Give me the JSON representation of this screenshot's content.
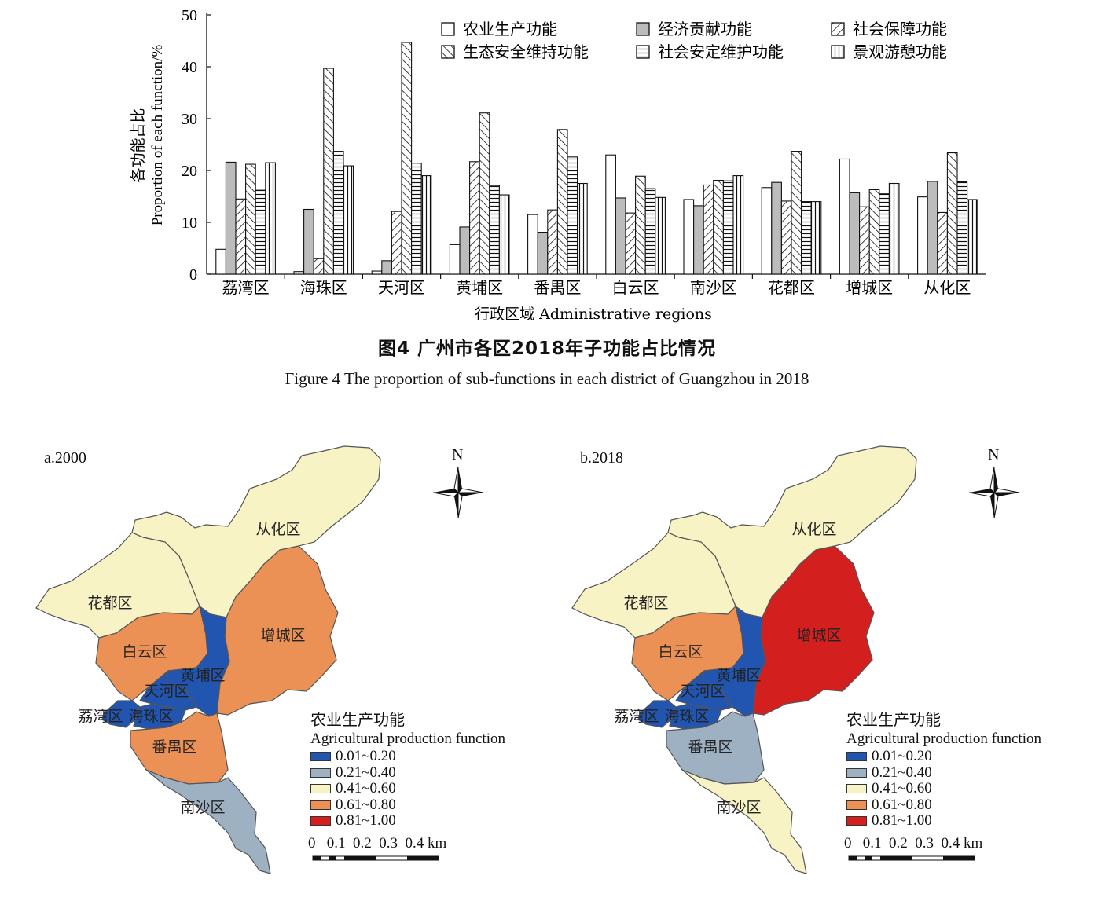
{
  "chart_data": [
    {
      "type": "bar",
      "title": "图4 广州市各区2018年子功能占比情况",
      "subtitle": "Figure 4 The proportion of sub-functions in each district of Guangzhou in 2018",
      "xlabel": "行政区域 Administrative regions",
      "ylabel_cn": "各功能占比",
      "ylabel_en": "Proportion of each function/%",
      "ylim": [
        0,
        50
      ],
      "yticks": [
        "0",
        "10",
        "20",
        "30",
        "40",
        "50"
      ],
      "categories": [
        "荔湾区",
        "海珠区",
        "天河区",
        "黄埔区",
        "番禺区",
        "白云区",
        "南沙区",
        "花都区",
        "增城区",
        "从化区"
      ],
      "legend_position": "top-right",
      "series": [
        {
          "name": "农业生产功能",
          "pattern": "blank",
          "values": [
            4.8,
            0.5,
            0.6,
            5.7,
            11.5,
            23.0,
            14.4,
            16.7,
            22.2,
            14.9
          ]
        },
        {
          "name": "经济贡献功能",
          "pattern": "gray",
          "values": [
            21.6,
            12.5,
            2.6,
            9.1,
            8.1,
            14.7,
            13.2,
            17.7,
            15.7,
            17.9
          ]
        },
        {
          "name": "社会保障功能",
          "pattern": "diag-right",
          "values": [
            14.5,
            3.0,
            12.1,
            21.7,
            12.4,
            11.8,
            17.2,
            14.1,
            13.0,
            11.9
          ]
        },
        {
          "name": "生态安全维持功能",
          "pattern": "diag-left",
          "values": [
            21.2,
            39.7,
            44.7,
            31.1,
            27.9,
            18.9,
            18.1,
            23.7,
            16.3,
            23.4
          ]
        },
        {
          "name": "社会安定维护功能",
          "pattern": "horizontal",
          "values": [
            16.4,
            23.7,
            21.4,
            17.1,
            22.6,
            16.5,
            18.0,
            14.0,
            15.5,
            17.8
          ]
        },
        {
          "name": "景观游憩功能",
          "pattern": "vertical",
          "values": [
            21.5,
            20.9,
            19.0,
            15.3,
            17.5,
            14.8,
            19.0,
            14.0,
            17.5,
            14.4
          ]
        }
      ]
    }
  ],
  "maps": {
    "panel_a": {
      "label": "a.2000",
      "north": "N"
    },
    "panel_b": {
      "label": "b.2018",
      "north": "N"
    },
    "region_names": [
      "从化区",
      "花都区",
      "增城区",
      "白云区",
      "黄埔区",
      "天河区",
      "荔湾区",
      "海珠区",
      "番禺区",
      "南沙区"
    ],
    "class_colors": {
      "0.01~0.20": "#2255b0",
      "0.21~0.40": "#9eb1c2",
      "0.41~0.60": "#f7f3c4",
      "0.61~0.80": "#eb9156",
      "0.81~1.00": "#d41f1f"
    },
    "values_2000": {
      "从化区": "0.41~0.60",
      "花都区": "0.41~0.60",
      "增城区": "0.61~0.80",
      "白云区": "0.61~0.80",
      "黄埔区": "0.01~0.20",
      "天河区": "0.01~0.20",
      "荔湾区": "0.01~0.20",
      "海珠区": "0.01~0.20",
      "番禺区": "0.61~0.80",
      "南沙区": "0.21~0.40"
    },
    "values_2018": {
      "从化区": "0.41~0.60",
      "花都区": "0.41~0.60",
      "增城区": "0.81~1.00",
      "白云区": "0.61~0.80",
      "黄埔区": "0.01~0.20",
      "天河区": "0.01~0.20",
      "荔湾区": "0.01~0.20",
      "海珠区": "0.01~0.20",
      "番禺区": "0.21~0.40",
      "南沙区": "0.41~0.60"
    },
    "legend": {
      "title_cn": "农业生产功能",
      "title_en": "Agricultural production function",
      "items": [
        "0.01~0.20",
        "0.21~0.40",
        "0.41~0.60",
        "0.61~0.80",
        "0.81~1.00"
      ]
    },
    "scale_bar": "0   0.1  0.2  0.3  0.4 km"
  }
}
